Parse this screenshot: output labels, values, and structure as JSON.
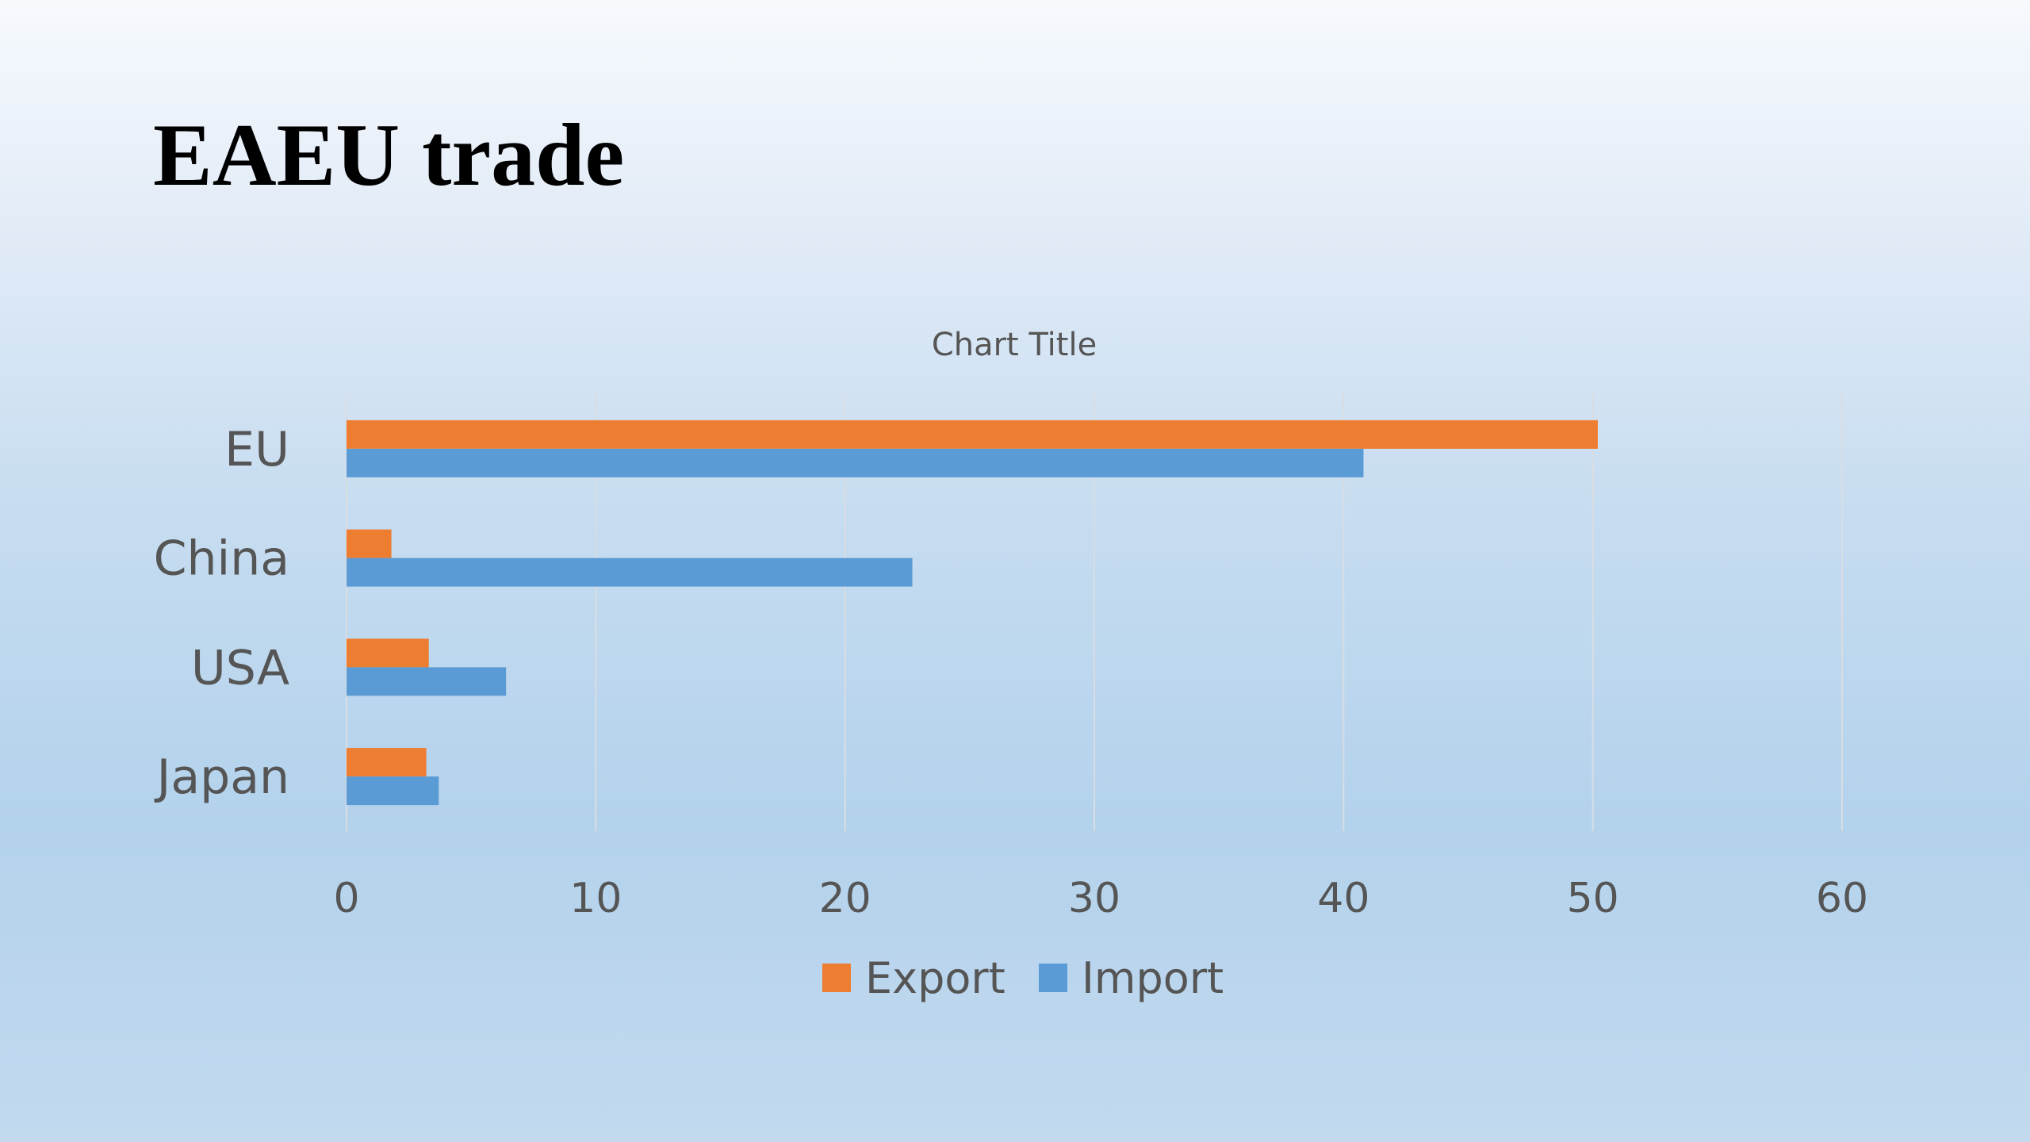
{
  "slide": {
    "title": "EAEU trade"
  },
  "chart_data": {
    "type": "bar",
    "orientation": "horizontal",
    "title": "Chart Title",
    "categories": [
      "EU",
      "China",
      "USA",
      "Japan"
    ],
    "series": [
      {
        "name": "Export",
        "color": "#ed7d31",
        "values": [
          50.2,
          1.8,
          3.3,
          3.2
        ]
      },
      {
        "name": "Import",
        "color": "#5b9bd5",
        "values": [
          40.8,
          22.7,
          6.4,
          3.7
        ]
      }
    ],
    "xlim": [
      0,
      60
    ],
    "xticks": [
      0,
      10,
      20,
      30,
      40,
      50,
      60
    ],
    "xlabel": "",
    "ylabel": "",
    "grid": true,
    "legend_position": "bottom"
  }
}
